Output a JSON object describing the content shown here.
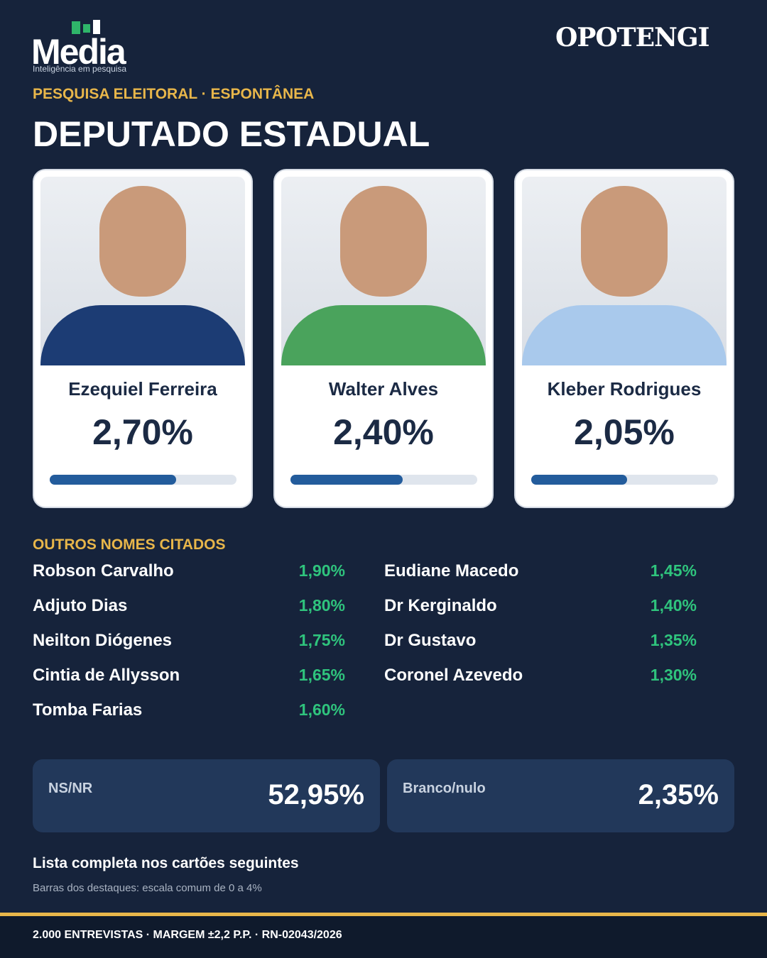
{
  "header": {
    "logo_left": "Media",
    "logo_left_tagline": "Inteligência em pesquisa",
    "logo_right": "OPOTENGI",
    "kicker": "PESQUISA ELEITORAL · ESPONTÂNEA",
    "title": "DEPUTADO ESTADUAL"
  },
  "featured": {
    "bar_scale": [
      0,
      4
    ],
    "candidates": [
      {
        "name": "Ezequiel Ferreira",
        "value": 2.7,
        "value_label": "2,70%"
      },
      {
        "name": "Walter Alves",
        "value": 2.4,
        "value_label": "2,40%"
      },
      {
        "name": "Kleber Rodrigues",
        "value": 2.05,
        "value_label": "2,05%"
      }
    ]
  },
  "others": {
    "title": "OUTROS NOMES CITADOS",
    "columns": [
      [
        {
          "name": "Robson Carvalho",
          "value": "1,90%"
        },
        {
          "name": "Adjuto Dias",
          "value": "1,80%"
        },
        {
          "name": "Neilton Diógenes",
          "value": "1,75%"
        },
        {
          "name": "Cintia de Allysson",
          "value": "1,65%"
        },
        {
          "name": "Tomba Farias",
          "value": "1,60%"
        }
      ],
      [
        {
          "name": "Eudiane Macedo",
          "value": "1,45%"
        },
        {
          "name": "Dr Kerginaldo",
          "value": "1,40%"
        },
        {
          "name": "Dr Gustavo",
          "value": "1,35%"
        },
        {
          "name": "Coronel Azevedo",
          "value": "1,30%"
        }
      ]
    ]
  },
  "summary": [
    {
      "label": "NS/NR",
      "value": "52,95%"
    },
    {
      "label": "Branco/nulo",
      "value": "2,35%"
    }
  ],
  "notes": {
    "main": "Lista completa nos cartões seguintes",
    "scale": "Barras dos destaques: escala comum de 0 a 4%"
  },
  "footer": "2.000 ENTREVISTAS · MARGEM ±2,2 P.P. · RN-02043/2026"
}
